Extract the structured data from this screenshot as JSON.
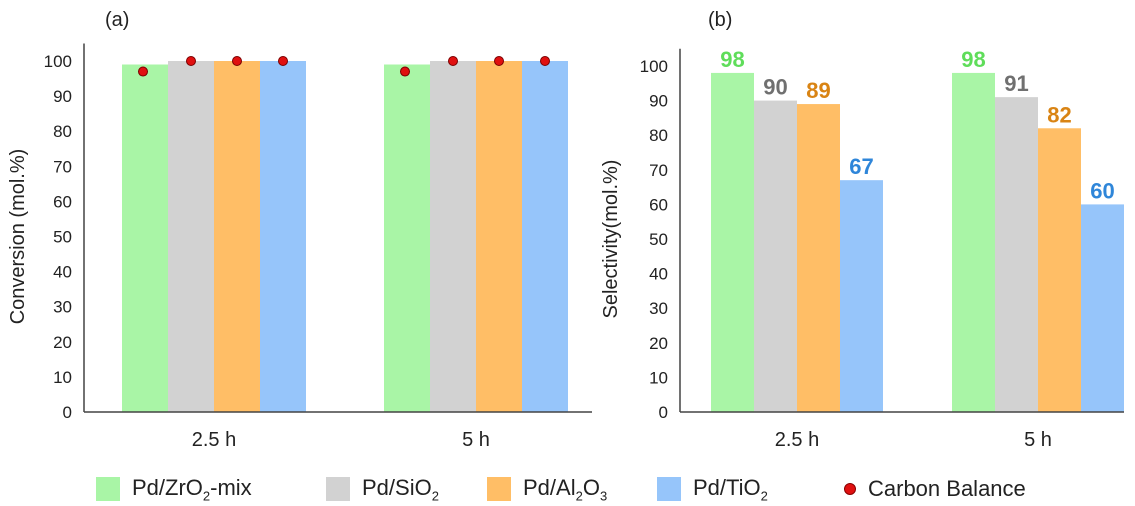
{
  "colors": {
    "series": [
      "#a9f5a6",
      "#d2d2d2",
      "#ffbe66",
      "#96c5fa"
    ],
    "labels": [
      "#5fdd5a",
      "#707070",
      "#d98414",
      "#2f86d9"
    ],
    "carbon_balance": "#e01010"
  },
  "legend": [
    {
      "label": "Pd/ZrO",
      "sub": "2",
      "tail": "-mix",
      "swatch": "series-0"
    },
    {
      "label": "Pd/SiO",
      "sub": "2",
      "tail": "",
      "swatch": "series-1"
    },
    {
      "label": "Pd/Al",
      "sub": "2",
      "mid": "O",
      "sub2": "3",
      "tail": "",
      "swatch": "series-2"
    },
    {
      "label": "Pd/TiO",
      "sub": "2",
      "tail": "",
      "swatch": "series-3"
    },
    {
      "label": "Carbon Balance",
      "sub": "",
      "tail": "",
      "swatch": "dot"
    }
  ],
  "chart_data": [
    {
      "type": "bar",
      "panel_label": "(a)",
      "categories": [
        "2.5 h",
        "5 h"
      ],
      "ylabel": "Conversion (mol.%)",
      "xlabel": "",
      "ylim": [
        0,
        105
      ],
      "yticks": [
        0,
        10,
        20,
        30,
        40,
        50,
        60,
        70,
        80,
        90,
        100
      ],
      "series": [
        {
          "name": "Pd/ZrO2-mix",
          "values": [
            99,
            99
          ]
        },
        {
          "name": "Pd/SiO2",
          "values": [
            100,
            100
          ]
        },
        {
          "name": "Pd/Al2O3",
          "values": [
            100,
            100
          ]
        },
        {
          "name": "Pd/TiO2",
          "values": [
            100,
            100
          ]
        }
      ],
      "carbon_balance": {
        "name": "Carbon Balance",
        "values": [
          [
            97,
            100,
            100,
            100
          ],
          [
            97,
            100,
            100,
            100
          ]
        ]
      },
      "data_labels": false,
      "grid": false
    },
    {
      "type": "bar",
      "panel_label": "(b)",
      "categories": [
        "2.5 h",
        "5 h"
      ],
      "ylabel": "Selectivity(mol.%)",
      "xlabel": "",
      "ylim": [
        0,
        105
      ],
      "yticks": [
        0,
        10,
        20,
        30,
        40,
        50,
        60,
        70,
        80,
        90,
        100
      ],
      "series": [
        {
          "name": "Pd/ZrO2-mix",
          "values": [
            98,
            98
          ]
        },
        {
          "name": "Pd/SiO2",
          "values": [
            90,
            91
          ]
        },
        {
          "name": "Pd/Al2O3",
          "values": [
            89,
            82
          ]
        },
        {
          "name": "Pd/TiO2",
          "values": [
            67,
            60
          ]
        }
      ],
      "data_labels": true,
      "grid": false
    }
  ]
}
